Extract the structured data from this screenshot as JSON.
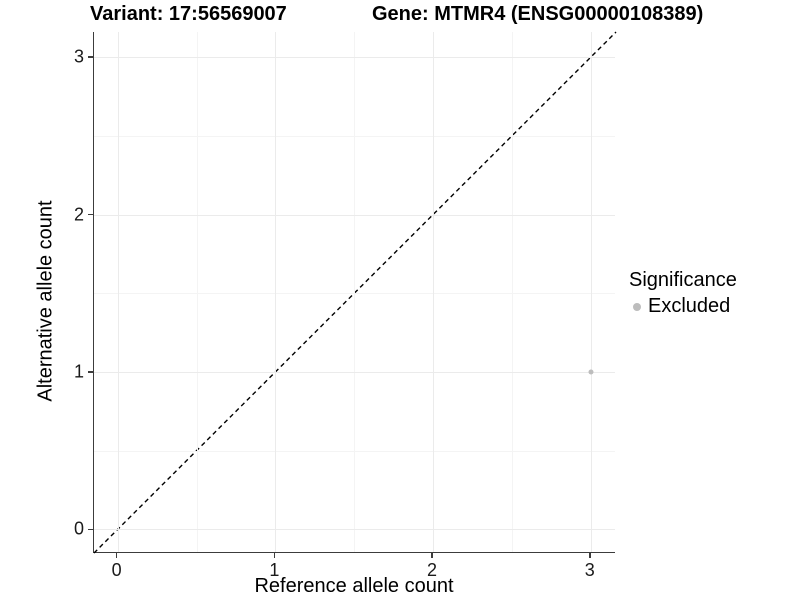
{
  "titles": {
    "variant": "Variant: 17:56569007",
    "gene": "Gene: MTMR4 (ENSG00000108389)"
  },
  "chart_data": {
    "type": "scatter",
    "title_left": "Variant: 17:56569007",
    "title_right": "Gene: MTMR4 (ENSG00000108389)",
    "xlabel": "Reference allele count",
    "ylabel": "Alternative allele count",
    "xlim": [
      -0.15,
      3.16
    ],
    "ylim": [
      -0.15,
      3.16
    ],
    "x_ticks": [
      0,
      1,
      2,
      3
    ],
    "y_ticks": [
      0,
      1,
      2,
      3
    ],
    "x_minor_ticks": [
      0.5,
      1.5,
      2.5
    ],
    "y_minor_ticks": [
      0.5,
      1.5,
      2.5
    ],
    "grid": true,
    "reference_line": {
      "type": "identity",
      "slope": 1,
      "intercept": 0,
      "style": "dashed",
      "color": "#000000"
    },
    "series": [
      {
        "name": "Excluded",
        "color": "#bdbdbd",
        "points": [
          {
            "x": 3,
            "y": 1
          }
        ]
      }
    ],
    "legend": {
      "position": "right",
      "title": "Significance",
      "items": [
        {
          "label": "Excluded",
          "color": "#bdbdbd"
        }
      ]
    }
  },
  "colors": {
    "grid_major": "#ebebeb",
    "grid_minor": "#f4f4f4",
    "axis_line": "#3c3c3c",
    "point": "#bdbdbd",
    "text": "#000000"
  }
}
